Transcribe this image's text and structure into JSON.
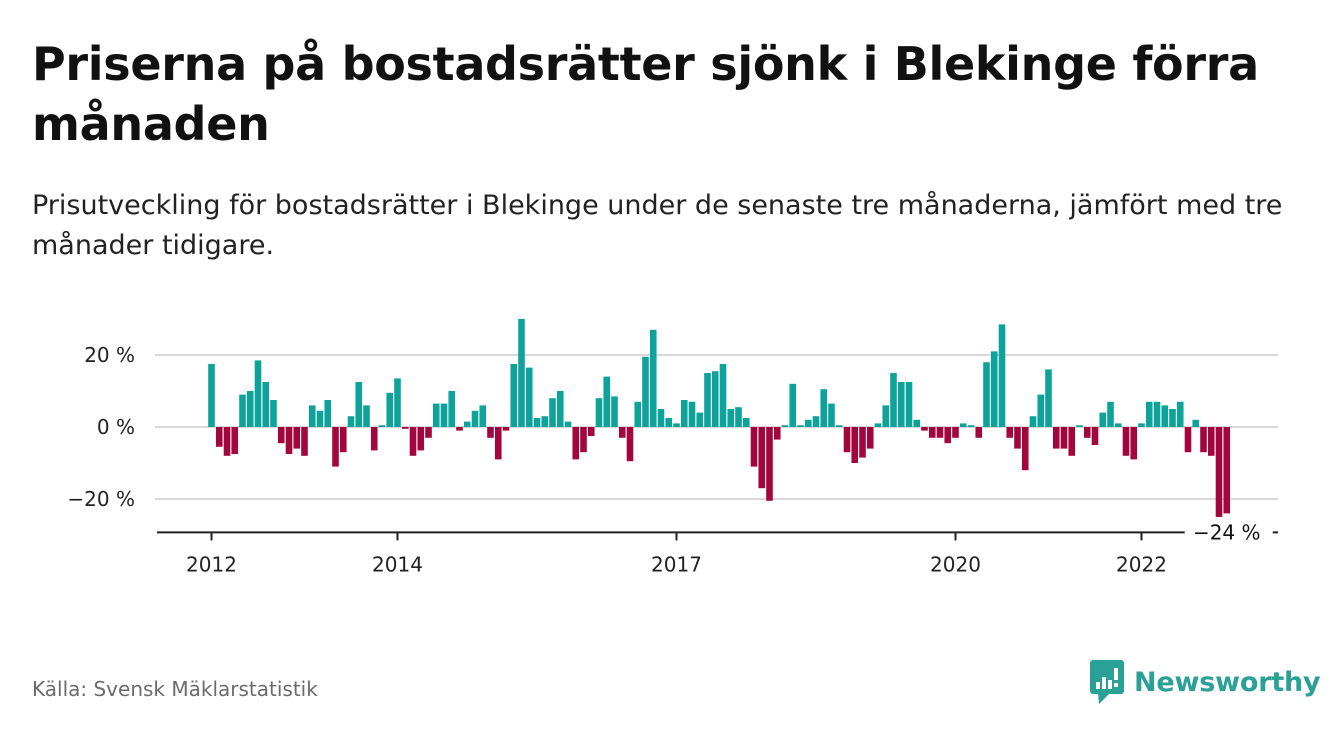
{
  "title": "Priserna på bostadsrätter sjönk i Blekinge förra månaden",
  "subtitle": "Prisutveckling för bostadsrätter i Blekinge under de senaste tre månaderna, jämfört med tre månader tidigare.",
  "source": "Källa: Svensk Mäklarstatistik",
  "brand": {
    "name": "Newsworthy",
    "icon": "newsworthy-logo-icon",
    "color": "#2aa197"
  },
  "colors": {
    "positive": "#0ea39a",
    "negative": "#a3063d",
    "grid": "#d9d9d9",
    "axis": "#222222"
  },
  "chart_data": {
    "type": "bar",
    "title": "",
    "xlabel": "",
    "ylabel": "",
    "ylim": [
      -29,
      30
    ],
    "yticks": [
      {
        "value": 20,
        "label": "20 %"
      },
      {
        "value": 0,
        "label": "0 %"
      },
      {
        "value": -20,
        "label": "−20 %"
      }
    ],
    "xticks": [
      {
        "index": 0,
        "label": "2012"
      },
      {
        "index": 24,
        "label": "2014"
      },
      {
        "index": 60,
        "label": "2017"
      },
      {
        "index": 96,
        "label": "2020"
      },
      {
        "index": 120,
        "label": "2022"
      }
    ],
    "grid": true,
    "end_label": "−24 %",
    "x_start": "2012-01",
    "x_end": "2022-12",
    "values": [
      17.5,
      -5.5,
      -8,
      -7.5,
      9,
      10,
      18.5,
      12.5,
      7.5,
      -4.5,
      -7.5,
      -6,
      -8,
      6,
      4.5,
      7.5,
      -11,
      -7,
      3,
      12.5,
      6,
      -6.5,
      0.5,
      9.5,
      13.5,
      -0.5,
      -8,
      -6.5,
      -3,
      6.5,
      6.5,
      10,
      -1,
      1.5,
      4.5,
      6,
      -3,
      -9,
      -1,
      17.5,
      30,
      16.5,
      2.5,
      3,
      8,
      10,
      1.5,
      -9,
      -7,
      -2.5,
      8,
      14,
      8.5,
      -3,
      -9.5,
      7,
      19.5,
      27,
      5,
      2.5,
      1,
      7.5,
      7,
      4,
      15,
      15.5,
      17.5,
      5,
      5.5,
      2.5,
      -11,
      -17,
      -20.5,
      -3.5,
      0.5,
      12,
      0.5,
      2,
      3,
      10.5,
      6.5,
      0.5,
      -7,
      -10,
      -8.5,
      -6,
      1,
      6,
      15,
      12.5,
      12.5,
      2,
      -1,
      -3,
      -3,
      -4.5,
      -3,
      1,
      0.5,
      -3,
      18,
      21,
      28.5,
      -3,
      -6,
      -12,
      3,
      9,
      16,
      -6,
      -6,
      -8,
      0.5,
      -3,
      -5,
      4,
      7,
      1,
      -8,
      -9,
      1,
      7,
      7,
      6,
      5,
      7,
      -7,
      2,
      -7,
      -8,
      -25,
      -24
    ]
  }
}
